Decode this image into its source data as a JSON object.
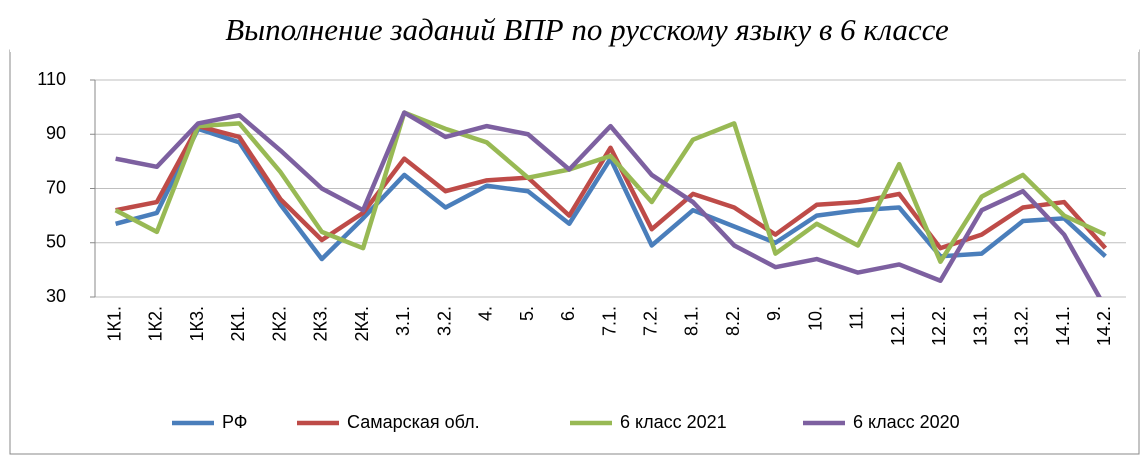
{
  "chart_data": {
    "type": "line",
    "title": "Выполнение заданий ВПР по русскому языку в 6 классе",
    "categories": [
      "1К1.",
      "1К2.",
      "1К3.",
      "2К1.",
      "2К2.",
      "2К3.",
      "2К4.",
      "3.1.",
      "3.2.",
      "4.",
      "5.",
      "6.",
      "7.1.",
      "7.2.",
      "8.1.",
      "8.2.",
      "9.",
      "10.",
      "11.",
      "12.1.",
      "12.2.",
      "13.1.",
      "13.2.",
      "14.1.",
      "14.2."
    ],
    "series": [
      {
        "name": "РФ",
        "color": "#4a7ebb",
        "values": [
          57,
          61,
          92,
          87,
          64,
          44,
          59,
          75,
          63,
          71,
          69,
          57,
          81,
          49,
          62,
          56,
          50,
          60,
          62,
          63,
          45,
          46,
          58,
          59,
          45
        ]
      },
      {
        "name": "Самарская обл.",
        "color": "#be4b48",
        "values": [
          62,
          65,
          93,
          89,
          66,
          51,
          61,
          81,
          69,
          73,
          74,
          60,
          85,
          55,
          68,
          63,
          53,
          64,
          65,
          68,
          48,
          53,
          63,
          65,
          48
        ]
      },
      {
        "name": "6 класс 2021",
        "color": "#98b954",
        "values": [
          62,
          54,
          93,
          94,
          76,
          54,
          48,
          98,
          92,
          87,
          74,
          77,
          82,
          65,
          88,
          94,
          46,
          57,
          49,
          79,
          43,
          67,
          75,
          60,
          53
        ]
      },
      {
        "name": "6 класс 2020",
        "color": "#7d60a0",
        "values": [
          81,
          78,
          94,
          97,
          84,
          70,
          62,
          98,
          89,
          93,
          90,
          77,
          93,
          75,
          65,
          49,
          41,
          44,
          39,
          42,
          36,
          62,
          69,
          53,
          26
        ]
      }
    ],
    "ylim": [
      30,
      110
    ],
    "yticks": [
      30,
      50,
      70,
      90,
      110
    ],
    "grid": true,
    "legend": "bottom"
  }
}
